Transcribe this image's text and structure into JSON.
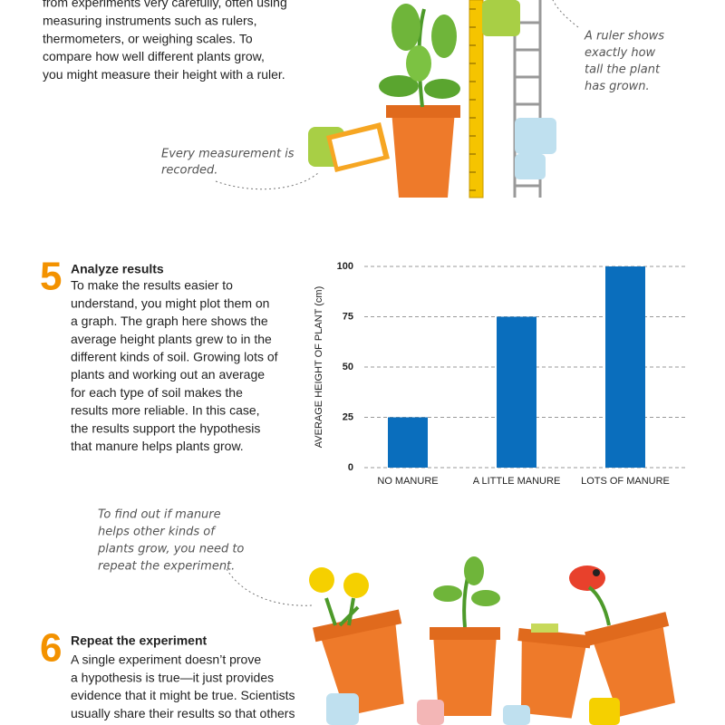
{
  "intro": {
    "lines": [
      "from experiments very carefully, often using",
      "measuring instruments such as rulers,",
      "thermometers, or weighing scales. To",
      "compare how well different plants grow,",
      "you might measure their height with a ruler."
    ]
  },
  "annotations": [
    {
      "lines": [
        "A ruler shows",
        "exactly how",
        "tall the plant",
        "has grown."
      ]
    },
    {
      "lines": [
        "Every measurement is",
        "recorded."
      ]
    },
    {
      "lines": [
        "To find out if manure",
        "helps other kinds of",
        "plants grow, you need to",
        "repeat the experiment."
      ]
    }
  ],
  "sections": [
    {
      "number": "5",
      "heading": "Analyze results",
      "lines": [
        "To make the results easier to",
        "understand, you might plot them on",
        "a graph. The graph here shows the",
        "average height plants grew to in the",
        "different kinds of soil. Growing lots of",
        "plants and working out an average",
        "for each type of soil makes the",
        "results more reliable. In this case,",
        "the results support the hypothesis",
        "that manure helps plants grow."
      ]
    },
    {
      "number": "6",
      "heading": "Repeat the experiment",
      "lines": [
        "A single experiment doesn’t prove",
        "a hypothesis is true—it just provides",
        "evidence that it might be true. Scientists",
        "usually share their results so that others"
      ]
    }
  ],
  "chart_data": {
    "type": "bar",
    "y_label": "AVERAGE HEIGHT OF PLANT (cm)",
    "categories": [
      "NO MANURE",
      "A LITTLE MANURE",
      "LOTS OF MANURE"
    ],
    "values": [
      25,
      75,
      100
    ],
    "color": "#0a6ebd",
    "ylim": [
      0,
      100
    ],
    "yticks": [
      0,
      25,
      50,
      75,
      100
    ],
    "grid": true
  }
}
